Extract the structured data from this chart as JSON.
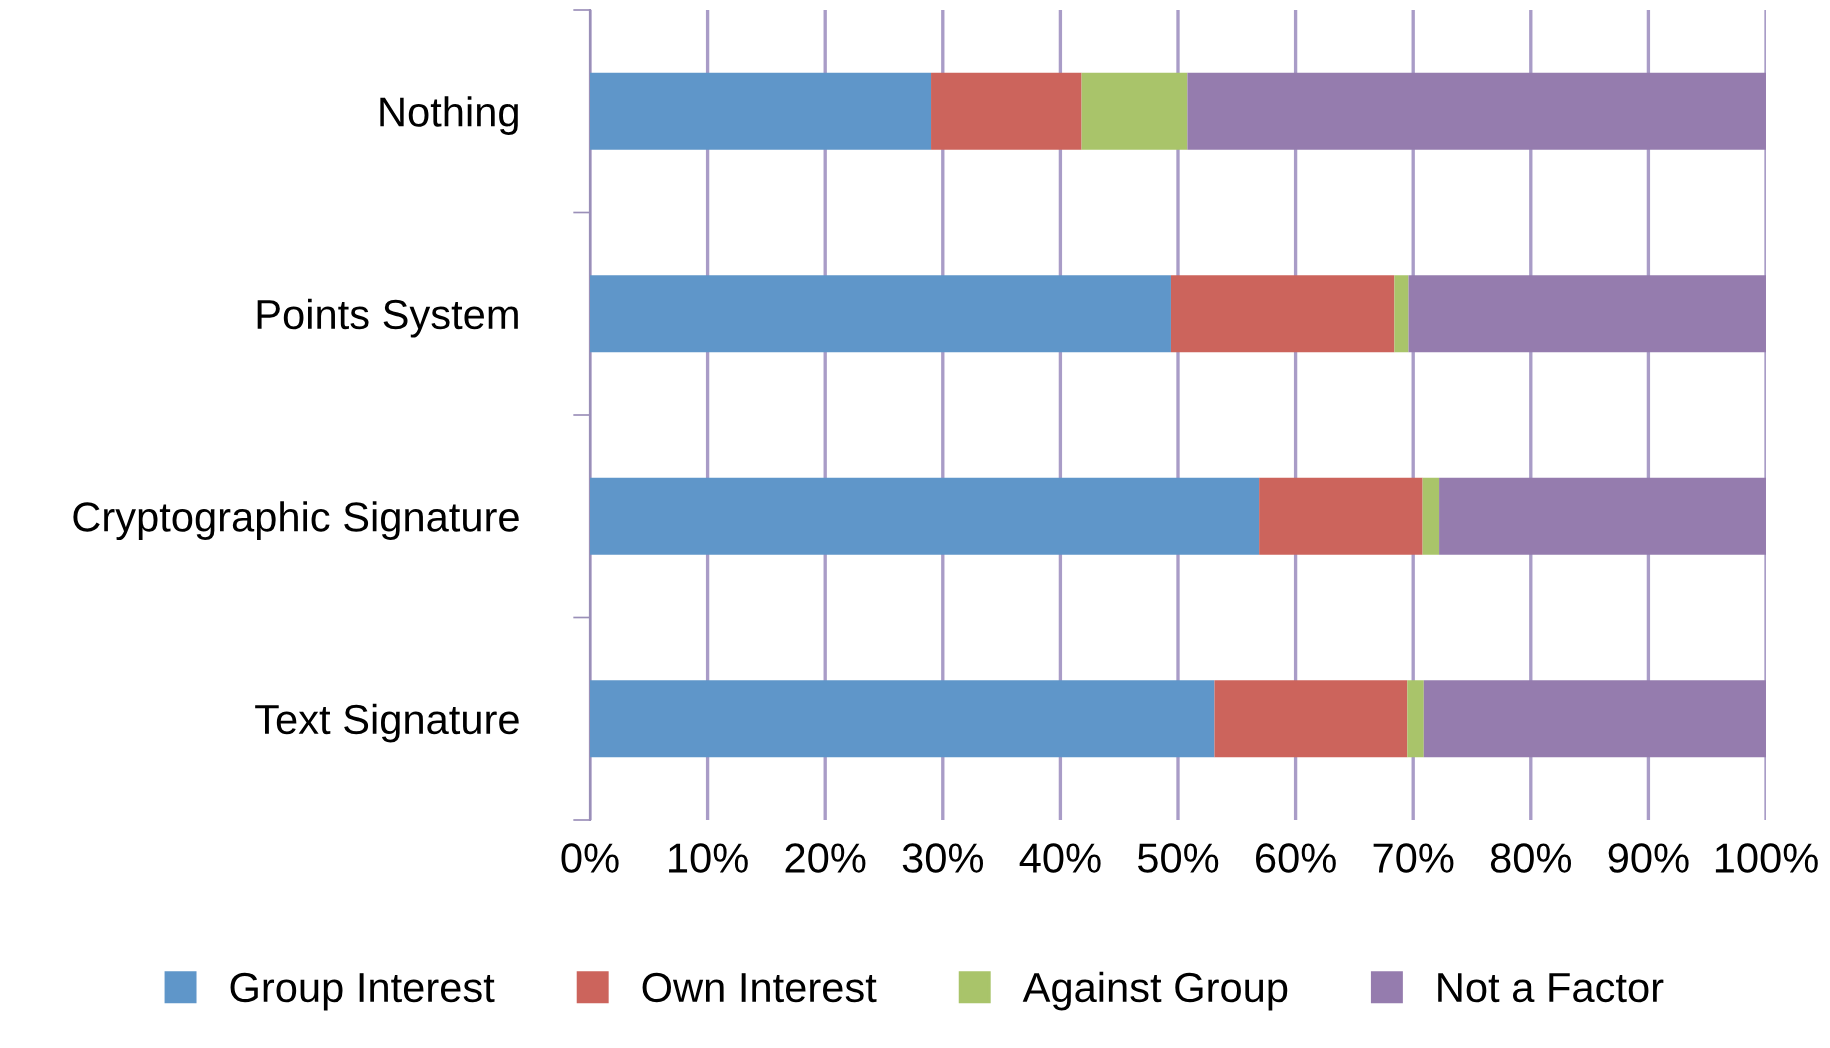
{
  "chart_data": {
    "type": "bar",
    "orientation": "horizontal",
    "stacked": true,
    "categories": [
      "Nothing",
      "Points System",
      "Cryptographic Signature",
      "Text Signature"
    ],
    "series": [
      {
        "name": "Group Interest",
        "color": "#5f96c9",
        "values": [
          29.0,
          49.4,
          56.9,
          53.1
        ]
      },
      {
        "name": "Own Interest",
        "color": "#cc645c",
        "values": [
          12.8,
          19.0,
          13.9,
          16.4
        ]
      },
      {
        "name": "Against Group",
        "color": "#a9c46a",
        "values": [
          9.0,
          1.2,
          1.4,
          1.4
        ]
      },
      {
        "name": "Not a Factor",
        "color": "#957cae",
        "values": [
          49.2,
          30.4,
          27.8,
          29.1
        ]
      }
    ],
    "xlim": [
      0,
      100
    ],
    "xticks": [
      {
        "value": 0,
        "label": "0%"
      },
      {
        "value": 10,
        "label": "10%"
      },
      {
        "value": 20,
        "label": "20%"
      },
      {
        "value": 30,
        "label": "30%"
      },
      {
        "value": 40,
        "label": "40%"
      },
      {
        "value": 50,
        "label": "50%"
      },
      {
        "value": 60,
        "label": "60%"
      },
      {
        "value": 70,
        "label": "70%"
      },
      {
        "value": 80,
        "label": "80%"
      },
      {
        "value": 90,
        "label": "90%"
      },
      {
        "value": 100,
        "label": "100%"
      }
    ],
    "grid": "x",
    "legend": "bottom"
  }
}
